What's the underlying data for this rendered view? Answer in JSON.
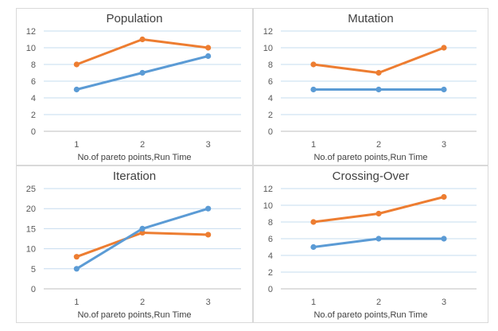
{
  "colors": {
    "series_orange": "#ED7D31",
    "series_blue": "#5B9BD5",
    "gridline": "#c6dcef",
    "axis": "#bfbfbf",
    "border": "#d9d9d9"
  },
  "chart_data": [
    {
      "type": "line",
      "title": "Population",
      "xlabel": "No.of pareto points,Run Time",
      "ylabel": "",
      "categories": [
        "1",
        "2",
        "3"
      ],
      "ylim": [
        0,
        12
      ],
      "yticks": [
        0,
        2,
        4,
        6,
        8,
        10,
        12
      ],
      "grid": true,
      "series": [
        {
          "color": "#ED7D31",
          "values": [
            8,
            11,
            10
          ]
        },
        {
          "color": "#5B9BD5",
          "values": [
            5,
            7,
            9
          ]
        }
      ]
    },
    {
      "type": "line",
      "title": "Mutation",
      "xlabel": "No.of pareto points,Run Time",
      "ylabel": "",
      "categories": [
        "1",
        "2",
        "3"
      ],
      "ylim": [
        0,
        12
      ],
      "yticks": [
        0,
        2,
        4,
        6,
        8,
        10,
        12
      ],
      "grid": true,
      "series": [
        {
          "color": "#ED7D31",
          "values": [
            8,
            7,
            10
          ]
        },
        {
          "color": "#5B9BD5",
          "values": [
            5,
            5,
            5
          ]
        }
      ]
    },
    {
      "type": "line",
      "title": "Iteration",
      "xlabel": "No.of pareto points,Run Time",
      "ylabel": "",
      "categories": [
        "1",
        "2",
        "3"
      ],
      "ylim": [
        0,
        25
      ],
      "yticks": [
        0,
        5,
        10,
        15,
        20,
        25
      ],
      "grid": true,
      "series": [
        {
          "color": "#ED7D31",
          "values": [
            8,
            14,
            13.5
          ]
        },
        {
          "color": "#5B9BD5",
          "values": [
            5,
            15,
            20
          ]
        }
      ]
    },
    {
      "type": "line",
      "title": "Crossing-Over",
      "xlabel": "No.of pareto points,Run Time",
      "ylabel": "",
      "categories": [
        "1",
        "2",
        "3"
      ],
      "ylim": [
        0,
        12
      ],
      "yticks": [
        0,
        2,
        4,
        6,
        8,
        10,
        12
      ],
      "grid": true,
      "series": [
        {
          "color": "#ED7D31",
          "values": [
            8,
            9,
            11
          ]
        },
        {
          "color": "#5B9BD5",
          "values": [
            5,
            6,
            6
          ]
        }
      ]
    }
  ]
}
